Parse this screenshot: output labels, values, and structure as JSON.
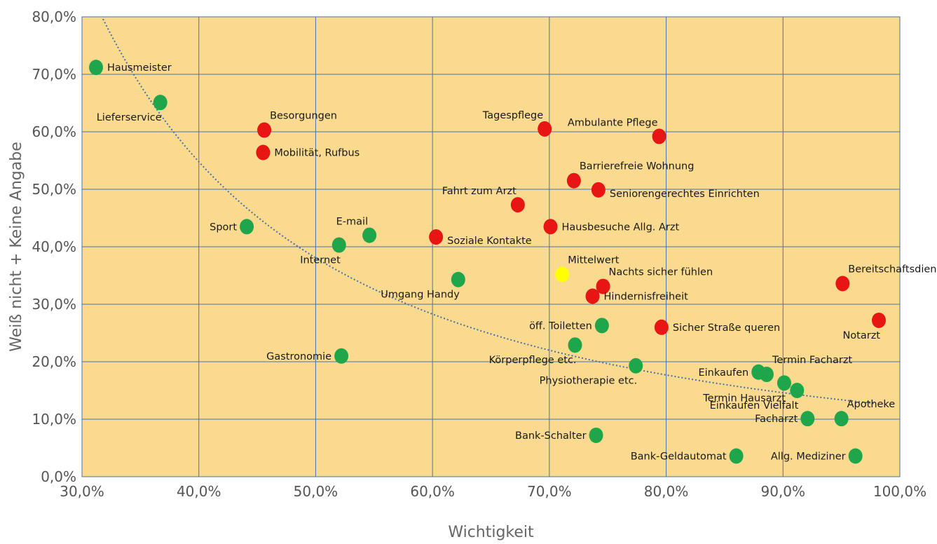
{
  "chart_data": {
    "type": "scatter",
    "xlabel": "Wichtigkeit",
    "ylabel": "Weiß nicht + Keine Angabe",
    "xlim": [
      0.3,
      1.0
    ],
    "ylim": [
      0.0,
      0.8
    ],
    "x_ticks": [
      "30,0%",
      "40,0%",
      "50,0%",
      "60,0%",
      "70,0%",
      "80,0%",
      "90,0%",
      "100,0%"
    ],
    "y_ticks": [
      "0,0%",
      "10,0%",
      "20,0%",
      "30,0%",
      "40,0%",
      "50,0%",
      "60,0%",
      "70,0%",
      "80,0%"
    ],
    "grid": true,
    "trendline": {
      "style": "dotted",
      "color": "#4a6fa8",
      "type": "power"
    },
    "colors": {
      "plot_background": "#f9da8e",
      "grid": "#4a72b0",
      "green": "#1fa64a",
      "red": "#e81515",
      "yellow": "#ffff00"
    },
    "points": [
      {
        "label": "Hausmeister",
        "x": 0.312,
        "y": 0.712,
        "color": "green",
        "lpos": "right"
      },
      {
        "label": "Lieferservice",
        "x": 0.367,
        "y": 0.651,
        "color": "green",
        "lpos": "below-left"
      },
      {
        "label": "Besorgungen",
        "x": 0.456,
        "y": 0.603,
        "color": "red",
        "lpos": "above-right"
      },
      {
        "label": "Mobilität, Rufbus",
        "x": 0.455,
        "y": 0.564,
        "color": "red",
        "lpos": "right"
      },
      {
        "label": "Sport",
        "x": 0.441,
        "y": 0.435,
        "color": "green",
        "lpos": "left"
      },
      {
        "label": "Internet",
        "x": 0.52,
        "y": 0.403,
        "color": "green",
        "lpos": "below-left"
      },
      {
        "label": "E-mail",
        "x": 0.546,
        "y": 0.42,
        "color": "green",
        "lpos": "above-left"
      },
      {
        "label": "Gastronomie",
        "x": 0.522,
        "y": 0.21,
        "color": "green",
        "lpos": "left"
      },
      {
        "label": "Soziale Kontakte",
        "x": 0.603,
        "y": 0.417,
        "color": "red",
        "lpos": "right-low"
      },
      {
        "label": "Umgang Handy",
        "x": 0.622,
        "y": 0.343,
        "color": "green",
        "lpos": "below-left"
      },
      {
        "label": "Tagespflege",
        "x": 0.696,
        "y": 0.605,
        "color": "red",
        "lpos": "above-left"
      },
      {
        "label": "Fahrt zum Arzt",
        "x": 0.673,
        "y": 0.473,
        "color": "red",
        "lpos": "above-left"
      },
      {
        "label": "Barrierefreie Wohnung",
        "x": 0.721,
        "y": 0.515,
        "color": "red",
        "lpos": "above-right"
      },
      {
        "label": "Seniorengerechtes Einrichten",
        "x": 0.742,
        "y": 0.499,
        "color": "red",
        "lpos": "right-low"
      },
      {
        "label": "Ambulante Pflege",
        "x": 0.794,
        "y": 0.592,
        "color": "red",
        "lpos": "above-left"
      },
      {
        "label": "Hausbesuche Allg. Arzt",
        "x": 0.701,
        "y": 0.435,
        "color": "red",
        "lpos": "right"
      },
      {
        "label": "Mittelwert",
        "x": 0.711,
        "y": 0.352,
        "color": "yellow",
        "lpos": "above-right"
      },
      {
        "label": "Nachts sicher fühlen",
        "x": 0.746,
        "y": 0.331,
        "color": "red",
        "lpos": "above-right"
      },
      {
        "label": "Hindernisfreiheit",
        "x": 0.737,
        "y": 0.314,
        "color": "red",
        "lpos": "right"
      },
      {
        "label": "öff. Toiletten",
        "x": 0.745,
        "y": 0.263,
        "color": "green",
        "lpos": "left"
      },
      {
        "label": "Körperpflege etc.",
        "x": 0.722,
        "y": 0.229,
        "color": "green",
        "lpos": "below-left"
      },
      {
        "label": "Physiotherapie etc.",
        "x": 0.774,
        "y": 0.193,
        "color": "green",
        "lpos": "below-left"
      },
      {
        "label": "Sicher Straße queren",
        "x": 0.796,
        "y": 0.26,
        "color": "red",
        "lpos": "right"
      },
      {
        "label": "Bank-Schalter",
        "x": 0.74,
        "y": 0.072,
        "color": "green",
        "lpos": "left"
      },
      {
        "label": "Bank-Geldautomat",
        "x": 0.86,
        "y": 0.036,
        "color": "green",
        "lpos": "left"
      },
      {
        "label": "Einkaufen",
        "x": 0.879,
        "y": 0.182,
        "color": "green",
        "lpos": "left"
      },
      {
        "label": "Termin Facharzt",
        "x": 0.886,
        "y": 0.178,
        "color": "green",
        "lpos": "above-right"
      },
      {
        "label": "Termin Hausarzt",
        "x": 0.901,
        "y": 0.163,
        "color": "green",
        "lpos": "below-left"
      },
      {
        "label": "Einkaufen Vielfalt",
        "x": 0.912,
        "y": 0.15,
        "color": "green",
        "lpos": "below-left"
      },
      {
        "label": "Facharzt",
        "x": 0.921,
        "y": 0.101,
        "color": "green",
        "lpos": "left"
      },
      {
        "label": "Apotheke",
        "x": 0.95,
        "y": 0.101,
        "color": "green",
        "lpos": "above-right"
      },
      {
        "label": "Allg. Mediziner",
        "x": 0.962,
        "y": 0.036,
        "color": "green",
        "lpos": "left"
      },
      {
        "label": "Bereitschaftsdienst",
        "x": 0.951,
        "y": 0.336,
        "color": "red",
        "lpos": "above-right"
      },
      {
        "label": "Notarzt",
        "x": 0.982,
        "y": 0.272,
        "color": "red",
        "lpos": "below-left"
      }
    ]
  }
}
